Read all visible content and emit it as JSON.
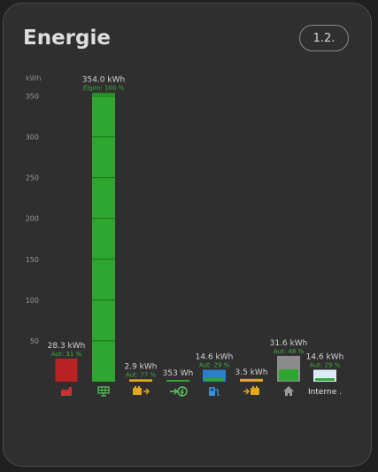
{
  "header": {
    "title": "Energie",
    "button_label": "1.2."
  },
  "colors": {
    "green": "#2fa62f",
    "red": "#b82222",
    "yellow": "#e0a81c",
    "blue": "#2a7fc8",
    "gray": "#8c8c8c",
    "light": "#dcecf7"
  },
  "chart_data": {
    "type": "bar",
    "unit_label": "kWh",
    "ylim": [
      0,
      370
    ],
    "y_ticks": [
      50,
      100,
      150,
      200,
      250,
      300,
      350
    ],
    "grid": false,
    "bars": [
      {
        "key": "consumption",
        "icon": "factory-icon",
        "kwh": 28.3,
        "value_label": "28.3 kWh",
        "sub_label": "Aut: 31 %",
        "color": "red",
        "fill": 1.0
      },
      {
        "key": "solar",
        "icon": "solar-panel-icon",
        "kwh": 354.0,
        "value_label": "354.0 kWh",
        "sub_label": "Eigen: 100 %",
        "color": "green",
        "fill": 1.0
      },
      {
        "key": "battery-charge",
        "icon": "battery-in-icon",
        "kwh": 2.9,
        "value_label": "2.9 kWh",
        "sub_label": "Aut: 77 %",
        "color": "yellow",
        "fill": 1.0
      },
      {
        "key": "grid-feed",
        "icon": "grid-export-icon",
        "kwh": 0.353,
        "value_label": "353 Wh",
        "sub_label": "",
        "color": "green",
        "fill": 1.0
      },
      {
        "key": "ev-charger",
        "icon": "ev-charger-icon",
        "kwh": 14.6,
        "value_label": "14.6 kWh",
        "sub_label": "Aut: 29 %",
        "color": "blue",
        "fill": 0.29
      },
      {
        "key": "battery-discharge",
        "icon": "battery-out-icon",
        "kwh": 3.5,
        "value_label": "3.5 kWh",
        "sub_label": "",
        "color": "yellow",
        "fill": 1.0
      },
      {
        "key": "house",
        "icon": "house-icon",
        "kwh": 31.6,
        "value_label": "31.6 kWh",
        "sub_label": "Aut: 48 %",
        "color": "gray",
        "fill": 0.48
      },
      {
        "key": "internal",
        "label": "Interne .",
        "kwh": 14.6,
        "value_label": "14.6 kWh",
        "sub_label": "Aut: 29 %",
        "color": "light",
        "fill": 0.29
      }
    ]
  }
}
